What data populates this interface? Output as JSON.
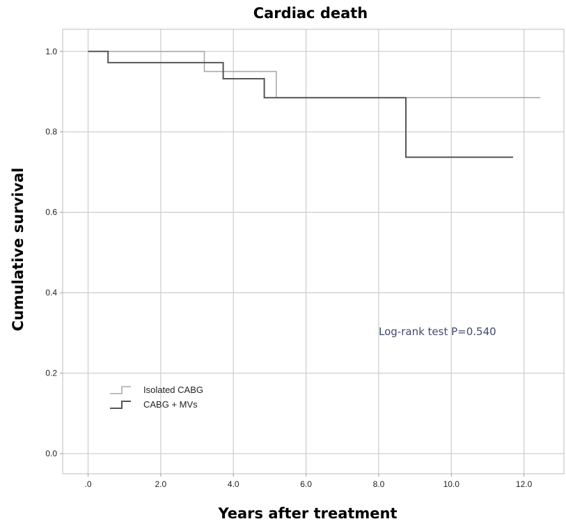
{
  "chart_data": {
    "type": "line",
    "step": true,
    "title": "Cardiac death",
    "xlabel": "Years after treatment",
    "ylabel": "Cumulative survival",
    "xlim": [
      -0.7,
      13.1
    ],
    "ylim": [
      -0.05,
      1.055
    ],
    "xticks": [
      0,
      2,
      4,
      6,
      8,
      10,
      12
    ],
    "xtick_labels": [
      ".0",
      "2.0",
      "4.0",
      "6.0",
      "8.0",
      "10.0",
      "12.0"
    ],
    "yticks": [
      0,
      0.2,
      0.4,
      0.6,
      0.8,
      1.0
    ],
    "ytick_labels": [
      "0.0",
      "0.2",
      "0.4",
      "0.6",
      "0.8",
      "1.0"
    ],
    "grid": true,
    "legend_position": "bottom-left",
    "annotation": "Log-rank test P=0.540",
    "series": [
      {
        "name": "Isolated CABG",
        "color": "#a9a9a9",
        "x": [
          0,
          3.2,
          3.2,
          5.18,
          5.18,
          12.45
        ],
        "y": [
          1.0,
          1.0,
          0.95,
          0.95,
          0.885,
          0.885
        ]
      },
      {
        "name": "CABG + MVs",
        "color": "#555555",
        "x": [
          0,
          0.55,
          0.55,
          3.72,
          3.72,
          4.85,
          4.85,
          8.75,
          8.75,
          11.7
        ],
        "y": [
          1.0,
          1.0,
          0.972,
          0.972,
          0.932,
          0.932,
          0.885,
          0.885,
          0.737,
          0.737
        ]
      }
    ]
  }
}
